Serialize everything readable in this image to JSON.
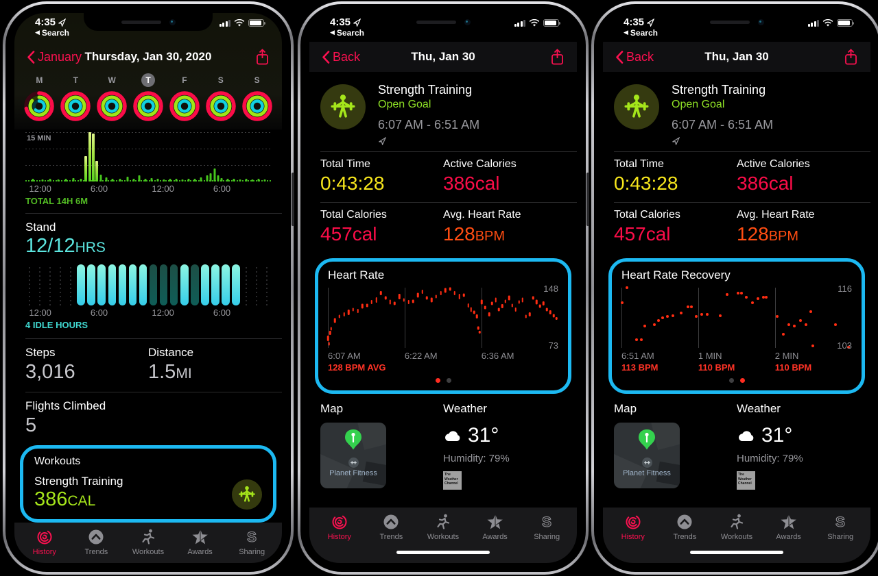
{
  "colors": {
    "annotation_cyan": "#1cb9f2",
    "accent_pink": "#fb1150",
    "lime_green": "#a5e51b",
    "goal_green": "#8fe126",
    "exercise_green": "#46c51d",
    "stand_cyan": "#5ce6e0",
    "time_yellow": "#f8e71c",
    "calories_pink": "#fb0d48",
    "heart_orange": "#ff4d12",
    "hr_dot_red": "#ff2d12"
  },
  "status_bar": {
    "time": "4:35",
    "back_to": "Search",
    "back_triangle": "◀"
  },
  "tab_bar": {
    "items": [
      {
        "label": "History",
        "icon": "history-icon",
        "active": true
      },
      {
        "label": "Trends",
        "icon": "trends-icon",
        "active": false
      },
      {
        "label": "Workouts",
        "icon": "workouts-icon",
        "active": false
      },
      {
        "label": "Awards",
        "icon": "awards-icon",
        "active": false
      },
      {
        "label": "Sharing",
        "icon": "sharing-icon",
        "active": false
      }
    ]
  },
  "phone1": {
    "nav": {
      "back": "January",
      "title": "Thursday, Jan 30, 2020"
    },
    "week": {
      "days": [
        "M",
        "T",
        "W",
        "T",
        "F",
        "S",
        "S"
      ],
      "selected_index": 3,
      "rings": [
        [
          0.72,
          0.85,
          0.62
        ],
        [
          1,
          1,
          1
        ],
        [
          1,
          1,
          1
        ],
        [
          1,
          1,
          1
        ],
        [
          1,
          1,
          1
        ],
        [
          1,
          1,
          1
        ],
        [
          1,
          1,
          1
        ]
      ]
    },
    "stand": {
      "title": "Stand",
      "value": "12/12",
      "unit": "HRS"
    },
    "steps": {
      "label": "Steps",
      "value": "3,016"
    },
    "distance": {
      "label": "Distance",
      "value": "1.5",
      "unit": "MI"
    },
    "flights": {
      "label": "Flights Climbed",
      "value": "5"
    },
    "workouts": {
      "header": "Workouts",
      "name": "Strength Training",
      "calories": "386",
      "unit": "CAL",
      "icon": "strength-training-icon"
    }
  },
  "workout_detail": {
    "nav": {
      "back": "Back",
      "title": "Thu, Jan 30"
    },
    "header": {
      "title": "Strength Training",
      "goal": "Open Goal",
      "time_range": "6:07 AM - 6:51 AM",
      "icon": "strength-training-icon"
    },
    "stats": [
      {
        "label": "Total Time",
        "value": "0:43:28",
        "unit": ""
      },
      {
        "label": "Active Calories",
        "value": "386",
        "unit": "cal"
      },
      {
        "label": "Total Calories",
        "value": "457",
        "unit": "cal"
      },
      {
        "label": "Avg. Heart Rate",
        "value": "128",
        "unit": "BPM"
      }
    ],
    "map": {
      "label": "Map",
      "poi": "Planet Fitness"
    },
    "weather": {
      "label": "Weather",
      "temp": "31°",
      "humidity": "Humidity: 79%",
      "provider": "The Weather Channel"
    }
  },
  "chart_data": [
    {
      "id": "exercise_minutes",
      "type": "bar",
      "gridline_label": "15 MIN",
      "x_labels": [
        "12:00",
        "6:00",
        "12:00",
        "6:00"
      ],
      "x_label_pos": [
        1.5,
        26.5,
        51.5,
        76.5
      ],
      "footer": "TOTAL 14H 6M",
      "bars": [
        [
          0.03,
          0.05
        ],
        [
          0.07,
          0.04
        ],
        [
          0.1,
          0.06
        ],
        [
          0.135,
          0.04
        ],
        [
          0.165,
          0.05
        ],
        [
          0.195,
          0.07
        ],
        [
          0.225,
          0.05
        ],
        [
          0.245,
          0.52
        ],
        [
          0.262,
          1.0
        ],
        [
          0.276,
          0.97
        ],
        [
          0.291,
          0.42
        ],
        [
          0.308,
          0.14
        ],
        [
          0.33,
          0.08
        ],
        [
          0.355,
          0.06
        ],
        [
          0.385,
          0.05
        ],
        [
          0.415,
          0.1
        ],
        [
          0.44,
          0.06
        ],
        [
          0.465,
          0.13
        ],
        [
          0.49,
          0.05
        ],
        [
          0.515,
          0.07
        ],
        [
          0.54,
          0.05
        ],
        [
          0.565,
          0.04
        ],
        [
          0.59,
          0.06
        ],
        [
          0.615,
          0.05
        ],
        [
          0.64,
          0.04
        ],
        [
          0.665,
          0.06
        ],
        [
          0.69,
          0.05
        ],
        [
          0.715,
          0.08
        ],
        [
          0.74,
          0.12
        ],
        [
          0.755,
          0.16
        ],
        [
          0.77,
          0.27
        ],
        [
          0.785,
          0.12
        ],
        [
          0.8,
          0.07
        ],
        [
          0.825,
          0.05
        ],
        [
          0.85,
          0.06
        ],
        [
          0.875,
          0.04
        ],
        [
          0.9,
          0.05
        ],
        [
          0.925,
          0.04
        ],
        [
          0.95,
          0.05
        ],
        [
          0.975,
          0.04
        ]
      ]
    },
    {
      "id": "stand_hours",
      "type": "bar",
      "x_labels": [
        "12:00",
        "6:00",
        "12:00",
        "6:00"
      ],
      "x_label_pos": [
        1.5,
        26.5,
        51.5,
        76.5
      ],
      "footer": "4 IDLE HOURS",
      "hours": [
        0,
        0,
        0,
        0,
        0,
        2,
        2,
        2,
        2,
        2,
        2,
        2,
        1,
        1,
        1,
        2,
        1,
        2,
        2,
        2,
        2,
        0,
        0,
        0
      ]
    },
    {
      "id": "heart_rate",
      "type": "scatter",
      "title": "Heart Rate",
      "y_max": "148",
      "y_min": "73",
      "range": [
        73,
        148
      ],
      "x_labels": [
        "6:07 AM",
        "6:22 AM",
        "6:36 AM"
      ],
      "x_label_pos": [
        0,
        33.3,
        66.6
      ],
      "avg_label": "128 BPM AVG",
      "active_page": 0,
      "points": [
        [
          0.0,
          85,
          8
        ],
        [
          0.005,
          78,
          5
        ],
        [
          0.009,
          92,
          6
        ],
        [
          0.014,
          97,
          5
        ],
        [
          0.03,
          107,
          7
        ],
        [
          0.05,
          112,
          5
        ],
        [
          0.07,
          115,
          6
        ],
        [
          0.09,
          117,
          8
        ],
        [
          0.11,
          121,
          5
        ],
        [
          0.13,
          119,
          6
        ],
        [
          0.15,
          125,
          7
        ],
        [
          0.17,
          126,
          5
        ],
        [
          0.19,
          130,
          6
        ],
        [
          0.21,
          133,
          8
        ],
        [
          0.23,
          141,
          6
        ],
        [
          0.25,
          135,
          5
        ],
        [
          0.27,
          130,
          7
        ],
        [
          0.29,
          128,
          5
        ],
        [
          0.31,
          137,
          8
        ],
        [
          0.33,
          133,
          5
        ],
        [
          0.35,
          130,
          6
        ],
        [
          0.37,
          131,
          5
        ],
        [
          0.39,
          139,
          7
        ],
        [
          0.41,
          143,
          6
        ],
        [
          0.43,
          135,
          5
        ],
        [
          0.45,
          133,
          7
        ],
        [
          0.47,
          137,
          5
        ],
        [
          0.49,
          141,
          6
        ],
        [
          0.51,
          145,
          7
        ],
        [
          0.53,
          146,
          5
        ],
        [
          0.55,
          141,
          6
        ],
        [
          0.57,
          137,
          8
        ],
        [
          0.59,
          139,
          5
        ],
        [
          0.61,
          126,
          6
        ],
        [
          0.622,
          121,
          7
        ],
        [
          0.635,
          117,
          5
        ],
        [
          0.646,
          112,
          6
        ],
        [
          0.652,
          98,
          5
        ],
        [
          0.658,
          93,
          4
        ],
        [
          0.668,
          130,
          7
        ],
        [
          0.682,
          123,
          5
        ],
        [
          0.7,
          115,
          6
        ],
        [
          0.712,
          128,
          5
        ],
        [
          0.728,
          133,
          7
        ],
        [
          0.742,
          121,
          5
        ],
        [
          0.756,
          125,
          6
        ],
        [
          0.77,
          131,
          5
        ],
        [
          0.786,
          135,
          7
        ],
        [
          0.8,
          126,
          5
        ],
        [
          0.815,
          121,
          6
        ],
        [
          0.83,
          130,
          5
        ],
        [
          0.845,
          133,
          7
        ],
        [
          0.86,
          112,
          5
        ],
        [
          0.875,
          115,
          6
        ],
        [
          0.89,
          135,
          5
        ],
        [
          0.905,
          130,
          7
        ],
        [
          0.92,
          125,
          5
        ],
        [
          0.935,
          128,
          6
        ],
        [
          0.95,
          121,
          5
        ],
        [
          0.965,
          117,
          6
        ],
        [
          0.98,
          113,
          5
        ],
        [
          0.992,
          110,
          4
        ]
      ]
    },
    {
      "id": "heart_rate_recovery",
      "type": "scatter",
      "title": "Heart Rate Recovery",
      "y_max": "116",
      "y_min": "103",
      "range": [
        103,
        116
      ],
      "x_labels": [
        "6:51 AM",
        "1 MIN",
        "2 MIN"
      ],
      "x_label_pos": [
        0,
        33.3,
        66.6
      ],
      "bpm_labels": [
        "113 BPM",
        "110 BPM",
        "110 BPM"
      ],
      "active_page": 1,
      "points": [
        [
          0.002,
          112.7
        ],
        [
          0.025,
          116
        ],
        [
          0.065,
          104.8
        ],
        [
          0.085,
          104.8
        ],
        [
          0.101,
          107.7
        ],
        [
          0.144,
          108
        ],
        [
          0.161,
          108.9
        ],
        [
          0.179,
          109.5
        ],
        [
          0.199,
          109.8
        ],
        [
          0.224,
          110
        ],
        [
          0.259,
          110.6
        ],
        [
          0.288,
          111.8
        ],
        [
          0.303,
          111.8
        ],
        [
          0.323,
          109.8
        ],
        [
          0.348,
          110.3
        ],
        [
          0.373,
          110.3
        ],
        [
          0.428,
          110
        ],
        [
          0.458,
          114.5
        ],
        [
          0.507,
          114.8
        ],
        [
          0.522,
          114.8
        ],
        [
          0.542,
          113.9
        ],
        [
          0.567,
          112.7
        ],
        [
          0.592,
          113.6
        ],
        [
          0.616,
          113.9
        ],
        [
          0.627,
          113.9
        ],
        [
          0.677,
          109.8
        ],
        [
          0.701,
          106
        ],
        [
          0.726,
          108
        ],
        [
          0.751,
          107.7
        ],
        [
          0.776,
          108.9
        ],
        [
          0.801,
          108
        ],
        [
          0.821,
          110.9
        ],
        [
          0.831,
          103.4
        ],
        [
          0.93,
          108
        ],
        [
          0.985,
          103.2
        ]
      ]
    }
  ]
}
